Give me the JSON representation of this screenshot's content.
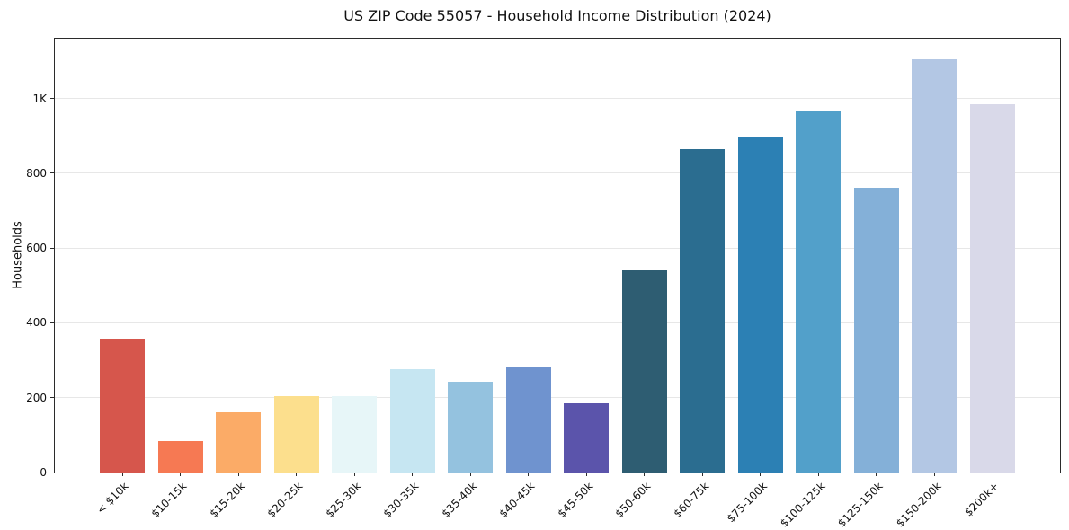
{
  "chart_data": {
    "type": "bar",
    "title": "US ZIP Code 55057 - Household Income Distribution (2024)",
    "xlabel": "",
    "ylabel": "Households",
    "ylim": [
      0,
      1160
    ],
    "grid": "horizontal",
    "legend": "none",
    "yticks": [
      {
        "value": 0,
        "label": "0"
      },
      {
        "value": 200,
        "label": "200"
      },
      {
        "value": 400,
        "label": "400"
      },
      {
        "value": 600,
        "label": "600"
      },
      {
        "value": 800,
        "label": "800"
      },
      {
        "value": 1000,
        "label": "1K"
      }
    ],
    "categories": [
      "< $10k",
      "$10-15k",
      "$15-20k",
      "$20-25k",
      "$25-30k",
      "$30-35k",
      "$35-40k",
      "$40-45k",
      "$45-50k",
      "$50-60k",
      "$60-75k",
      "$75-100k",
      "$100-125k",
      "$125-150k",
      "$150-200k",
      "$200k+"
    ],
    "values": [
      357,
      83,
      160,
      205,
      204,
      276,
      242,
      283,
      186,
      541,
      864,
      899,
      965,
      762,
      1104,
      984
    ],
    "colors": [
      "#d6564c",
      "#f67953",
      "#fbab67",
      "#fcdf8d",
      "#e7f6f8",
      "#c6e6f2",
      "#94c2df",
      "#6f93cf",
      "#5b54ab",
      "#2e5d72",
      "#2b6d90",
      "#2c80b4",
      "#52a0ca",
      "#84b0d8",
      "#b3c7e4",
      "#d9d9e9"
    ]
  }
}
